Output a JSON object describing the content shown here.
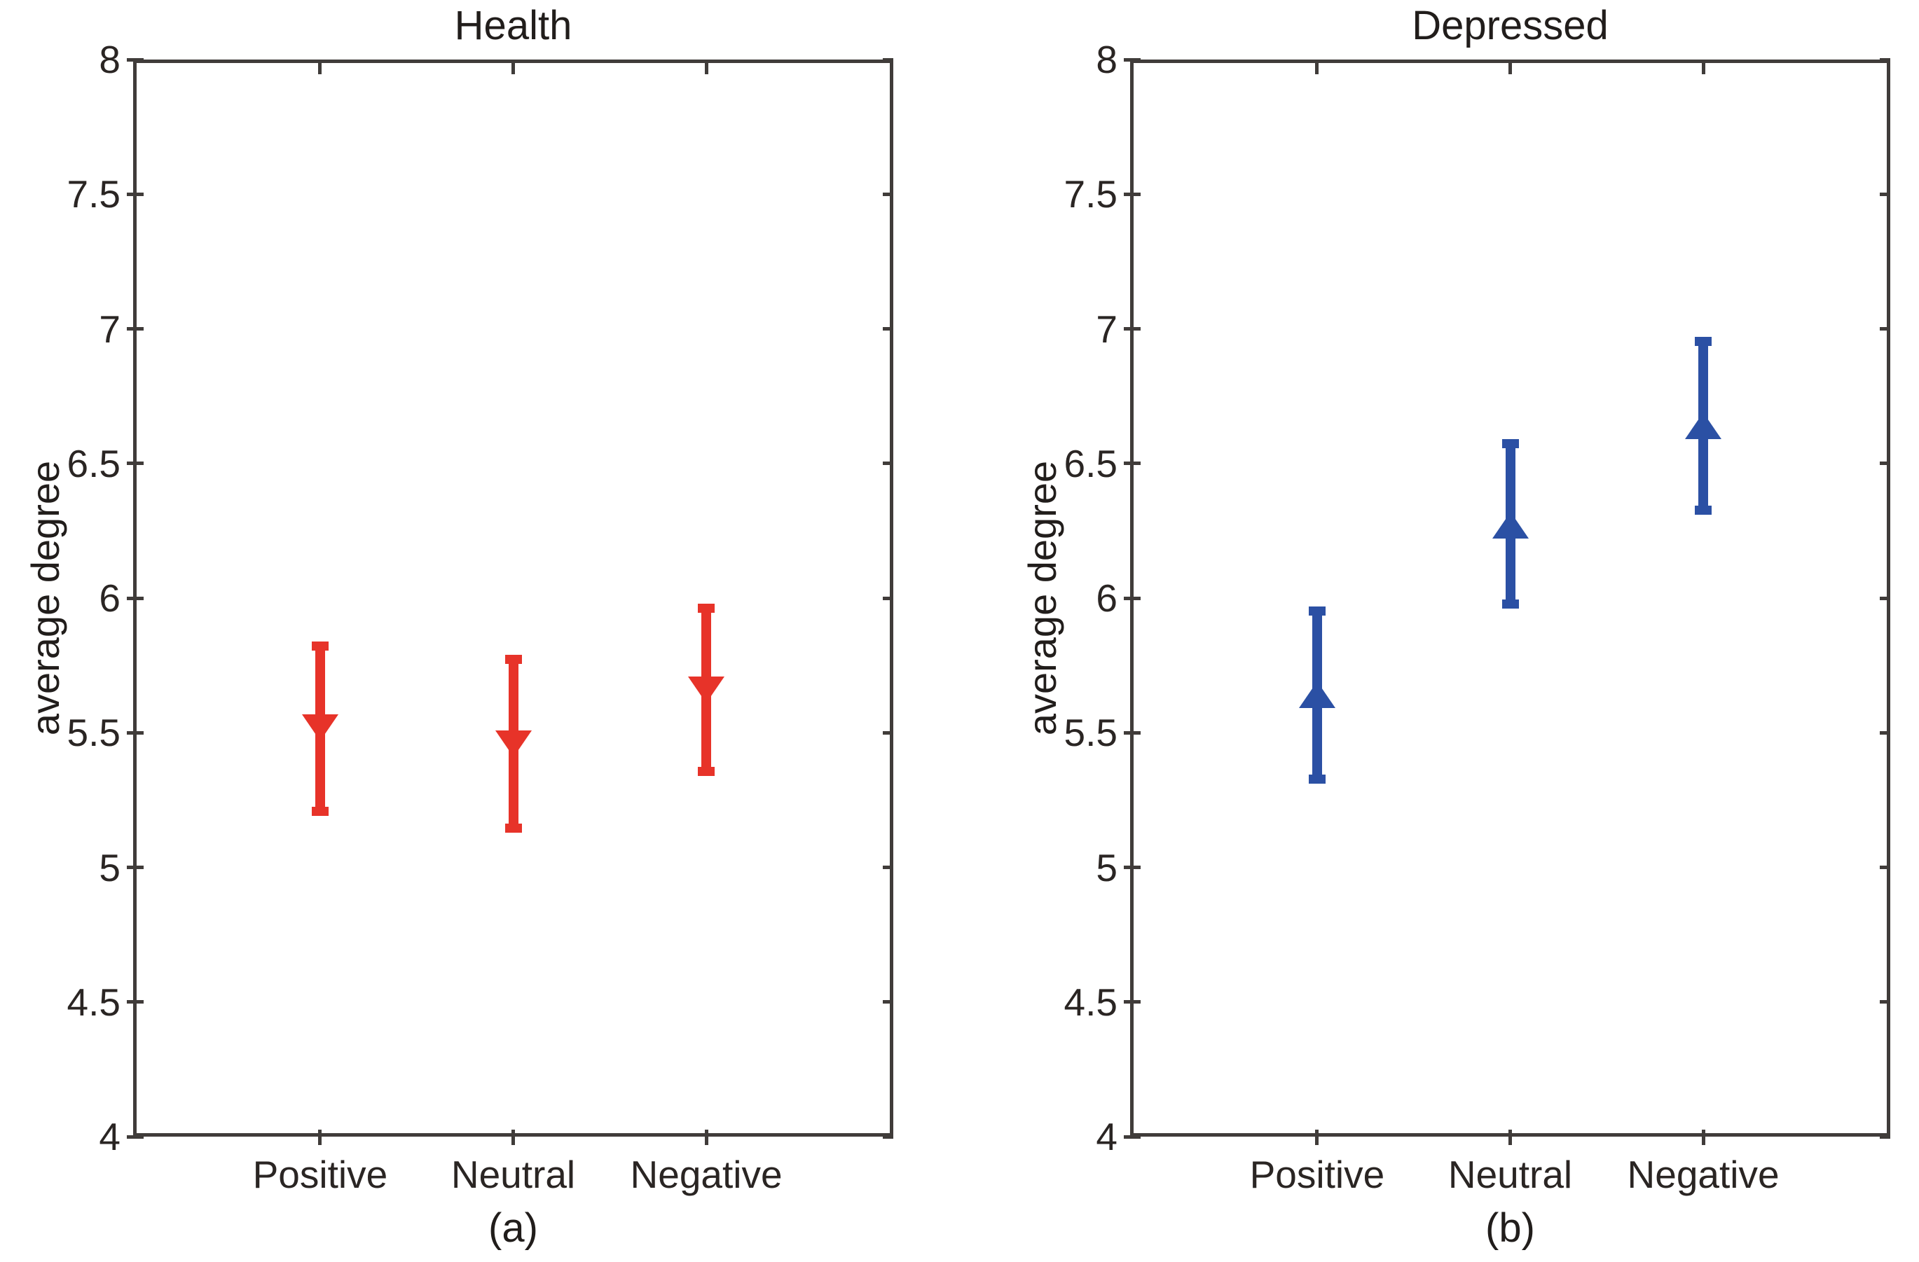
{
  "figure_title": "",
  "chart_data": [
    {
      "type": "scatter",
      "variant": "errorbar",
      "title": "Health",
      "xlabel": "",
      "ylabel": "average degree",
      "sublabel": "(a)",
      "categories": [
        "Positive",
        "Neutral",
        "Negative"
      ],
      "series": [
        {
          "name": "Health",
          "marker": "triangle-down",
          "color": "#e73329",
          "means": [
            5.52,
            5.46,
            5.66
          ],
          "err_low": [
            5.19,
            5.13,
            5.34
          ],
          "err_high": [
            5.84,
            5.79,
            5.98
          ]
        }
      ],
      "ylim": [
        4,
        8
      ],
      "yticks": [
        8,
        7.5,
        7,
        6.5,
        6,
        5.5,
        5,
        4.5,
        4
      ],
      "ytick_labels": [
        "8",
        "7.5",
        "7",
        "6.5",
        "6",
        "5.5",
        "5",
        "4.5",
        "4"
      ],
      "grid": false,
      "legend": "none",
      "box": true
    },
    {
      "type": "scatter",
      "variant": "errorbar",
      "title": "Depressed",
      "xlabel": "",
      "ylabel": "average degree",
      "sublabel": "(b)",
      "categories": [
        "Positive",
        "Neutral",
        "Negative"
      ],
      "series": [
        {
          "name": "Depressed",
          "marker": "triangle-up",
          "color": "#2b50a4",
          "means": [
            5.64,
            6.27,
            6.64
          ],
          "err_low": [
            5.31,
            5.96,
            6.31
          ],
          "err_high": [
            5.97,
            6.59,
            6.97
          ]
        }
      ],
      "ylim": [
        4,
        8
      ],
      "yticks": [
        8,
        7.5,
        7,
        6.5,
        6,
        5.5,
        5,
        4.5,
        4
      ],
      "ytick_labels": [
        "8",
        "7.5",
        "7",
        "6.5",
        "6",
        "5.5",
        "5",
        "4.5",
        "4"
      ],
      "grid": false,
      "legend": "none",
      "box": true
    }
  ],
  "palette": {
    "health_red": "#e73329",
    "depressed_blue": "#2b50a4",
    "axis_color": "#403c3a",
    "text_color": "#2a2523"
  }
}
